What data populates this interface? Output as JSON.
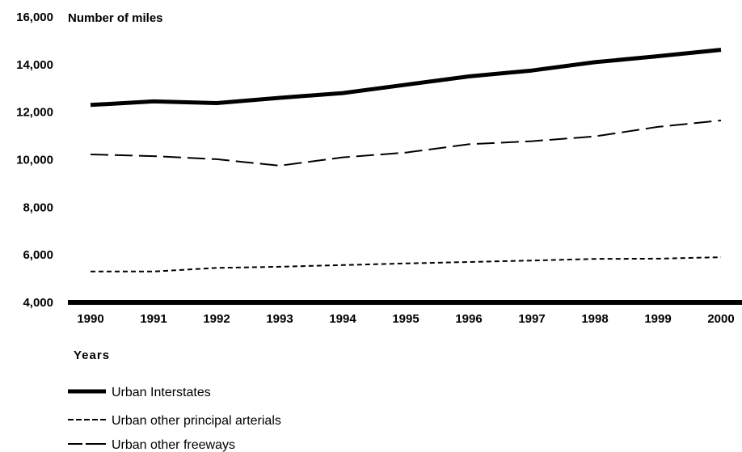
{
  "chart_data": {
    "type": "line",
    "ylabel": "Number of miles",
    "xlabel": "Years",
    "x": [
      "1990",
      "1991",
      "1992",
      "1993",
      "1994",
      "1995",
      "1996",
      "1997",
      "1998",
      "1999",
      "2000"
    ],
    "ylim": [
      4000,
      16000
    ],
    "y_ticks": [
      "4,000",
      "6,000",
      "8,000",
      "10,000",
      "12,000",
      "14,000",
      "16,000"
    ],
    "y_tick_values": [
      4000,
      6000,
      8000,
      10000,
      12000,
      14000,
      16000
    ],
    "grid": false,
    "legend_position": "bottom-left",
    "series": [
      {
        "name": "Urban Interstates",
        "style": "solid-thick",
        "color": "#000000",
        "values": [
          12300,
          12450,
          12380,
          12600,
          12800,
          13150,
          13500,
          13750,
          14100,
          14350,
          14620
        ]
      },
      {
        "name": "Urban other principal arterials",
        "style": "dashed-short",
        "color": "#000000",
        "values": [
          5300,
          5300,
          5450,
          5500,
          5570,
          5640,
          5700,
          5760,
          5830,
          5840,
          5900
        ]
      },
      {
        "name": "Urban other freeways",
        "style": "dashed-long",
        "color": "#000000",
        "values": [
          10220,
          10150,
          10020,
          9750,
          10100,
          10300,
          10650,
          10780,
          10980,
          11380,
          11650
        ]
      }
    ]
  }
}
